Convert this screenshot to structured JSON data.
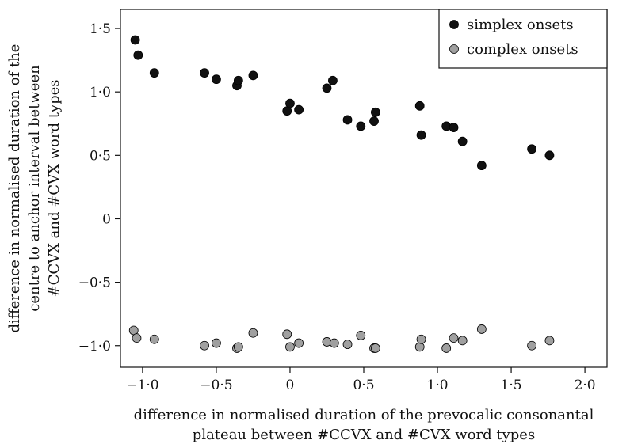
{
  "chart_data": {
    "type": "scatter",
    "title": "",
    "xlabel": [
      "difference in normalised duration of the prevocalic consonantal",
      "plateau between #CCVX and #CVX word types"
    ],
    "ylabel": [
      "difference in normalised duration of the",
      "centre to anchor interval between",
      "#CCVX and #CVX word types"
    ],
    "xlim": [
      -1.15,
      2.15
    ],
    "ylim": [
      -1.17,
      1.65
    ],
    "xticks": [
      -1.0,
      -0.5,
      0,
      0.5,
      1.0,
      1.5,
      2.0
    ],
    "xtick_labels": [
      "−1·0",
      "−0·5",
      "0",
      "0·5",
      "1·0",
      "1·5",
      "2·0"
    ],
    "yticks": [
      -1.0,
      -0.5,
      0,
      0.5,
      1.0,
      1.5
    ],
    "ytick_labels": [
      "−1·0",
      "−0·5",
      "0",
      "0·5",
      "1·0",
      "1·5"
    ],
    "grid": false,
    "legend_position": "top-right",
    "series": [
      {
        "name": "simplex onsets",
        "color": "#111111",
        "points": [
          [
            -1.05,
            1.41
          ],
          [
            -1.03,
            1.29
          ],
          [
            -0.92,
            1.15
          ],
          [
            -0.58,
            1.15
          ],
          [
            -0.5,
            1.1
          ],
          [
            -0.36,
            1.05
          ],
          [
            -0.35,
            1.09
          ],
          [
            -0.25,
            1.13
          ],
          [
            -0.02,
            0.85
          ],
          [
            0.0,
            0.91
          ],
          [
            0.06,
            0.86
          ],
          [
            0.25,
            1.03
          ],
          [
            0.29,
            1.09
          ],
          [
            0.39,
            0.78
          ],
          [
            0.48,
            0.73
          ],
          [
            0.57,
            0.77
          ],
          [
            0.58,
            0.84
          ],
          [
            0.88,
            0.89
          ],
          [
            0.89,
            0.66
          ],
          [
            1.06,
            0.73
          ],
          [
            1.11,
            0.72
          ],
          [
            1.17,
            0.61
          ],
          [
            1.3,
            0.42
          ],
          [
            1.64,
            0.55
          ],
          [
            1.76,
            0.5
          ]
        ]
      },
      {
        "name": "complex onsets",
        "color": "#a0a0a0",
        "points": [
          [
            -1.06,
            -0.88
          ],
          [
            -1.04,
            -0.94
          ],
          [
            -0.92,
            -0.95
          ],
          [
            -0.58,
            -1.0
          ],
          [
            -0.5,
            -0.98
          ],
          [
            -0.36,
            -1.02
          ],
          [
            -0.35,
            -1.01
          ],
          [
            -0.25,
            -0.9
          ],
          [
            -0.02,
            -0.91
          ],
          [
            0.0,
            -1.01
          ],
          [
            0.06,
            -0.98
          ],
          [
            0.25,
            -0.97
          ],
          [
            0.3,
            -0.98
          ],
          [
            0.39,
            -0.99
          ],
          [
            0.48,
            -0.92
          ],
          [
            0.57,
            -1.02
          ],
          [
            0.58,
            -1.02
          ],
          [
            0.88,
            -1.01
          ],
          [
            0.89,
            -0.95
          ],
          [
            1.06,
            -1.02
          ],
          [
            1.11,
            -0.94
          ],
          [
            1.17,
            -0.96
          ],
          [
            1.3,
            -0.87
          ],
          [
            1.64,
            -1.0
          ],
          [
            1.76,
            -0.96
          ]
        ]
      }
    ]
  }
}
